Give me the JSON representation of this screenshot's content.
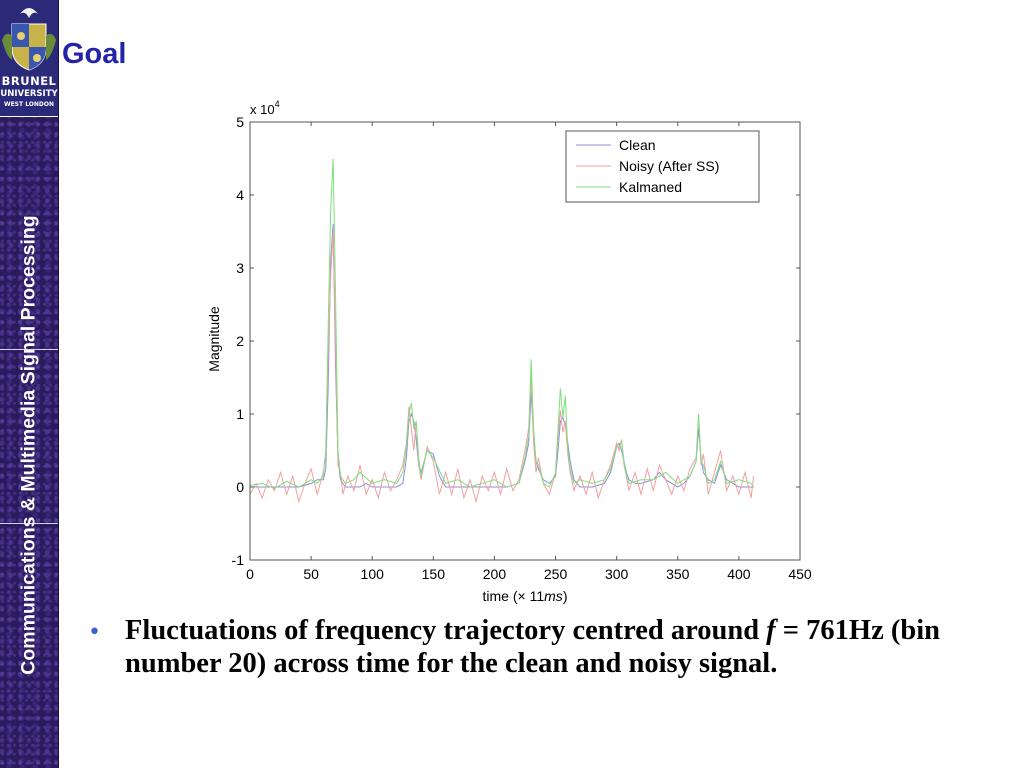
{
  "slide": {
    "title": "Goal",
    "sidebar_text": "Communications & Multimedia Signal Processing",
    "logo": [
      "BRUNEL",
      "UNIVERSITY",
      "WEST LONDON"
    ],
    "bullet": {
      "before": "Fluctuations of frequency trajectory centred around ",
      "var": "f",
      "after": " = 761Hz (bin number 20) across time for the clean and noisy signal."
    },
    "colors": {
      "title": "#2424a8",
      "sidebar": "#2a1a5e",
      "bullet": "#3b5fd0"
    }
  },
  "chart_data": {
    "type": "line",
    "xlabel_prefix": "time (",
    "xlabel_times": "×",
    "xlabel_num": " 11",
    "xlabel_unit": "ms",
    "xlabel_suffix": ")",
    "ylabel": "Magnitude",
    "ylabel_scale": "x 10",
    "ylabel_scale_exp": "4",
    "xlim": [
      0,
      450
    ],
    "ylim": [
      -1,
      5
    ],
    "xticks": [
      0,
      50,
      100,
      150,
      200,
      250,
      300,
      350,
      400,
      450
    ],
    "yticks": [
      -1,
      0,
      1,
      2,
      3,
      4,
      5
    ],
    "grid": false,
    "legend_position": "top-right",
    "series": [
      {
        "name": "Clean",
        "color": "#8c8cdc",
        "x": [
          0,
          40,
          50,
          55,
          60,
          62,
          64,
          66,
          68,
          70,
          72,
          74,
          76,
          78,
          80,
          90,
          95,
          100,
          110,
          120,
          125,
          128,
          130,
          132,
          134,
          136,
          138,
          140,
          145,
          150,
          155,
          160,
          170,
          180,
          190,
          200,
          210,
          220,
          225,
          228,
          230,
          232,
          234,
          236,
          240,
          245,
          250,
          252,
          254,
          256,
          258,
          260,
          262,
          265,
          270,
          280,
          290,
          295,
          300,
          302,
          304,
          306,
          308,
          310,
          315,
          320,
          330,
          335,
          340,
          350,
          355,
          360,
          365,
          367,
          369,
          371,
          375,
          380,
          385,
          390,
          400,
          412
        ],
        "y": [
          0,
          0,
          0.05,
          0.1,
          0.1,
          0.25,
          1.4,
          3.1,
          3.6,
          1.6,
          0.4,
          0.1,
          0.05,
          0,
          0,
          0,
          0.05,
          0,
          0,
          0,
          0.05,
          0.4,
          0.9,
          1.0,
          0.9,
          0.65,
          0.3,
          0.2,
          0.5,
          0.45,
          0.15,
          0,
          0,
          0,
          0,
          0,
          0,
          0.05,
          0.35,
          0.6,
          1.3,
          0.7,
          0.35,
          0.25,
          0.1,
          0.05,
          0.15,
          0.5,
          0.9,
          0.95,
          0.85,
          0.6,
          0.35,
          0.1,
          0,
          0,
          0.05,
          0.2,
          0.55,
          0.6,
          0.5,
          0.35,
          0.2,
          0.1,
          0.05,
          0.05,
          0.1,
          0.2,
          0.1,
          0,
          0.05,
          0.15,
          0.35,
          0.8,
          0.4,
          0.2,
          0.1,
          0.05,
          0.3,
          0.1,
          0,
          0
        ]
      },
      {
        "name": "Noisy (After SS)",
        "color": "#f0a0a0",
        "x": [
          0,
          5,
          10,
          15,
          20,
          25,
          30,
          35,
          40,
          45,
          50,
          55,
          60,
          62,
          64,
          66,
          68,
          70,
          72,
          74,
          76,
          80,
          85,
          90,
          95,
          100,
          105,
          110,
          115,
          120,
          125,
          128,
          130,
          132,
          134,
          136,
          138,
          140,
          145,
          150,
          155,
          160,
          165,
          170,
          175,
          180,
          185,
          190,
          195,
          200,
          205,
          210,
          215,
          220,
          225,
          228,
          230,
          232,
          234,
          236,
          240,
          245,
          250,
          252,
          254,
          256,
          258,
          260,
          262,
          265,
          270,
          275,
          280,
          285,
          290,
          295,
          300,
          302,
          304,
          306,
          308,
          310,
          315,
          320,
          325,
          330,
          335,
          340,
          345,
          350,
          355,
          360,
          365,
          367,
          369,
          371,
          375,
          380,
          385,
          390,
          395,
          400,
          405,
          410,
          412
        ],
        "y": [
          -0.1,
          0.05,
          -0.15,
          0.1,
          -0.05,
          0.2,
          -0.1,
          0.15,
          -0.2,
          0.05,
          0.25,
          -0.1,
          0.2,
          0.45,
          1.8,
          2.9,
          3.5,
          1.9,
          0.3,
          0.2,
          -0.1,
          0.15,
          -0.05,
          0.3,
          -0.1,
          0.1,
          -0.15,
          0.2,
          -0.05,
          0.1,
          0.3,
          0.6,
          1.1,
          0.8,
          0.5,
          0.9,
          0.3,
          0.1,
          0.55,
          0.35,
          -0.1,
          0.2,
          -0.1,
          0.25,
          -0.15,
          0.1,
          -0.2,
          0.15,
          -0.05,
          0.2,
          -0.1,
          0.25,
          -0.05,
          0.1,
          0.5,
          0.8,
          1.5,
          0.6,
          0.2,
          0.4,
          0.05,
          -0.1,
          0.2,
          0.7,
          1.05,
          0.75,
          0.9,
          0.45,
          0.2,
          -0.05,
          0.15,
          -0.1,
          0.2,
          -0.15,
          0.1,
          0.3,
          0.6,
          0.5,
          0.65,
          0.3,
          0.15,
          -0.05,
          0.2,
          -0.1,
          0.25,
          -0.05,
          0.3,
          0.1,
          -0.1,
          0.15,
          -0.05,
          0.25,
          0.4,
          1.0,
          0.3,
          0.45,
          -0.1,
          0.2,
          0.5,
          -0.05,
          0.15,
          -0.1,
          0.2,
          -0.15,
          0.15
        ]
      },
      {
        "name": "Kalmaned",
        "color": "#7ee07e",
        "x": [
          0,
          10,
          20,
          30,
          40,
          50,
          55,
          60,
          62,
          64,
          66,
          68,
          70,
          72,
          74,
          78,
          85,
          90,
          100,
          110,
          120,
          125,
          128,
          130,
          132,
          134,
          136,
          138,
          140,
          145,
          150,
          160,
          170,
          180,
          190,
          200,
          210,
          220,
          225,
          228,
          230,
          232,
          234,
          236,
          240,
          245,
          250,
          252,
          254,
          256,
          258,
          260,
          262,
          265,
          270,
          280,
          290,
          295,
          300,
          302,
          304,
          306,
          308,
          310,
          320,
          330,
          340,
          350,
          360,
          365,
          367,
          369,
          371,
          375,
          380,
          385,
          390,
          400,
          410,
          412
        ],
        "y": [
          0.02,
          0.05,
          -0.02,
          0.08,
          0.0,
          0.1,
          0.05,
          0.15,
          0.5,
          2.2,
          3.8,
          4.5,
          2.6,
          0.5,
          0.15,
          0.05,
          0.1,
          0.2,
          0.05,
          0.1,
          0.05,
          0.2,
          0.55,
          1.0,
          1.15,
          0.8,
          0.9,
          0.4,
          0.15,
          0.5,
          0.4,
          0.05,
          0.1,
          0.0,
          0.05,
          0.1,
          0.0,
          0.05,
          0.4,
          0.7,
          1.75,
          0.8,
          0.35,
          0.3,
          0.05,
          0.0,
          0.2,
          0.8,
          1.35,
          0.95,
          1.25,
          0.5,
          0.25,
          0.05,
          0.1,
          0.05,
          0.1,
          0.25,
          0.55,
          0.55,
          0.62,
          0.35,
          0.15,
          0.05,
          0.1,
          0.1,
          0.2,
          0.05,
          0.15,
          0.35,
          1.0,
          0.35,
          0.3,
          0.05,
          0.1,
          0.35,
          0.05,
          0.1,
          0.05,
          0.0
        ]
      }
    ]
  }
}
